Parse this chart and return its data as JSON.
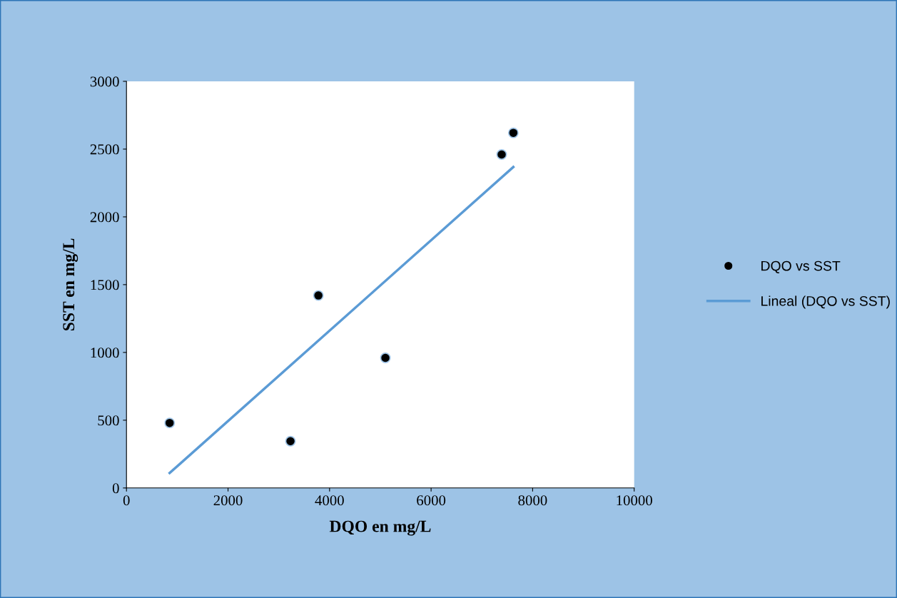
{
  "chart_data": {
    "type": "scatter",
    "xlabel": "DQO en mg/L",
    "ylabel": "SST en mg/L",
    "xlim": [
      0,
      10000
    ],
    "xticks": [
      0,
      2000,
      4000,
      6000,
      8000,
      10000
    ],
    "ylim": [
      0,
      3000
    ],
    "yticks": [
      0,
      500,
      1000,
      1500,
      2000,
      2500,
      3000
    ],
    "grid": false,
    "legend": "right",
    "series": [
      {
        "name": "DQO vs SST",
        "marker": "circle",
        "color": "#000000",
        "x": [
          850,
          3230,
          3780,
          5100,
          7390,
          7620
        ],
        "values": [
          480,
          345,
          1420,
          960,
          2460,
          2620
        ]
      },
      {
        "name": "Lineal (DQO vs SST)",
        "type": "line",
        "color": "#5b9bd5",
        "x": [
          850,
          7620
        ],
        "values": [
          110,
          2368
        ],
        "line_style": "solid"
      }
    ]
  }
}
